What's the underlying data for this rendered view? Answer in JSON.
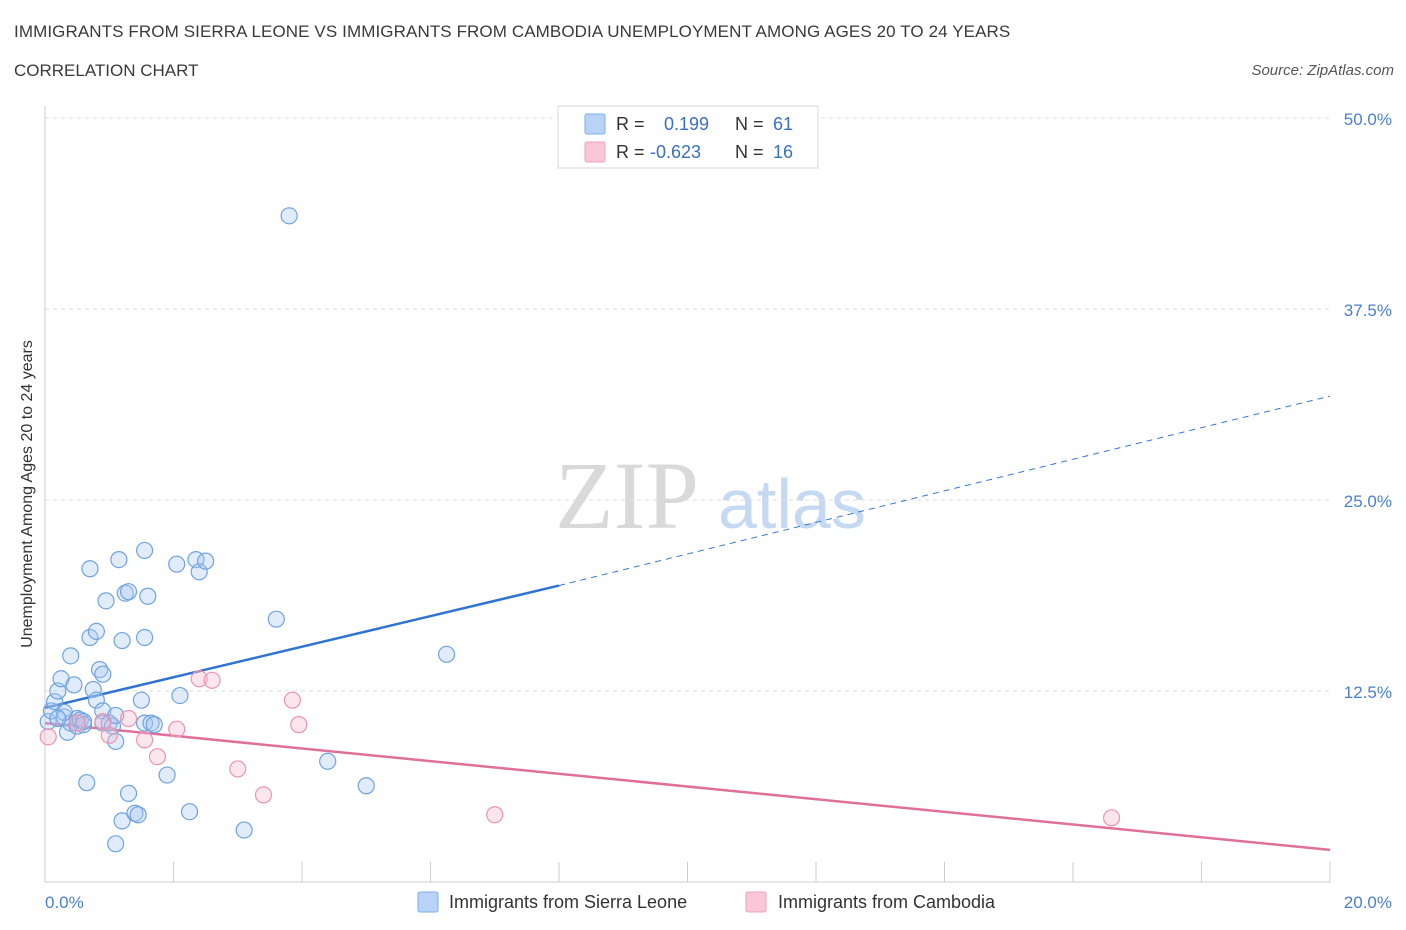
{
  "header": {
    "title": "IMMIGRANTS FROM SIERRA LEONE VS IMMIGRANTS FROM CAMBODIA UNEMPLOYMENT AMONG AGES 20 TO 24 YEARS",
    "subtitle": "CORRELATION CHART",
    "source": "Source: ZipAtlas.com"
  },
  "watermark": {
    "zip": "ZIP",
    "atlas": "atlas"
  },
  "legend": {
    "rows": [
      {
        "r_label": "R =",
        "r_value": "0.199",
        "n_label": "N =",
        "n_value": "61",
        "color": "#a8c8f0"
      },
      {
        "r_label": "R =",
        "r_value": "-0.623",
        "n_label": "N =",
        "n_value": "16",
        "color": "#f6b8cc"
      }
    ]
  },
  "chart_data": {
    "type": "scatter",
    "title": "IMMIGRANTS FROM SIERRA LEONE VS IMMIGRANTS FROM CAMBODIA UNEMPLOYMENT AMONG AGES 20 TO 24 YEARS",
    "subtitle": "CORRELATION CHART",
    "xlabel": "",
    "ylabel": "Unemployment Among Ages 20 to 24 years",
    "xlim": [
      0,
      20
    ],
    "ylim": [
      0,
      50
    ],
    "x_tick_labels": [
      "0.0%",
      "20.0%"
    ],
    "y_ticks": [
      12.5,
      25.0,
      37.5,
      50.0
    ],
    "y_tick_labels": [
      "12.5%",
      "25.0%",
      "37.5%",
      "50.0%"
    ],
    "grid": true,
    "legend_position": "top-center",
    "series": [
      {
        "name": "Immigrants from Sierra Leone",
        "color": "#7aaee8",
        "points": [
          [
            0.05,
            10.5
          ],
          [
            0.1,
            11.2
          ],
          [
            0.15,
            11.8
          ],
          [
            0.2,
            12.5
          ],
          [
            0.25,
            13.3
          ],
          [
            0.3,
            10.8
          ],
          [
            0.35,
            9.8
          ],
          [
            0.4,
            10.4
          ],
          [
            0.45,
            12.9
          ],
          [
            0.4,
            14.8
          ],
          [
            0.5,
            10.2
          ],
          [
            0.5,
            10.7
          ],
          [
            0.55,
            10.6
          ],
          [
            0.6,
            10.3
          ],
          [
            0.65,
            6.5
          ],
          [
            0.7,
            16.0
          ],
          [
            0.75,
            12.6
          ],
          [
            0.7,
            20.5
          ],
          [
            0.8,
            11.9
          ],
          [
            0.8,
            16.4
          ],
          [
            0.85,
            13.9
          ],
          [
            0.9,
            13.6
          ],
          [
            0.9,
            11.2
          ],
          [
            0.9,
            10.4
          ],
          [
            0.95,
            18.4
          ],
          [
            1.0,
            10.4
          ],
          [
            1.05,
            10.2
          ],
          [
            1.1,
            10.9
          ],
          [
            1.1,
            9.2
          ],
          [
            1.1,
            2.5
          ],
          [
            1.15,
            21.1
          ],
          [
            1.2,
            4.0
          ],
          [
            1.2,
            15.8
          ],
          [
            1.25,
            18.9
          ],
          [
            1.3,
            19.0
          ],
          [
            1.3,
            5.8
          ],
          [
            1.4,
            4.5
          ],
          [
            1.45,
            4.4
          ],
          [
            1.5,
            11.9
          ],
          [
            1.55,
            21.7
          ],
          [
            1.55,
            16.0
          ],
          [
            1.55,
            10.4
          ],
          [
            1.6,
            18.7
          ],
          [
            1.65,
            10.4
          ],
          [
            1.7,
            10.3
          ],
          [
            1.9,
            7.0
          ],
          [
            2.05,
            20.8
          ],
          [
            2.1,
            12.2
          ],
          [
            2.25,
            4.6
          ],
          [
            2.35,
            21.1
          ],
          [
            2.4,
            20.3
          ],
          [
            2.5,
            21.0
          ],
          [
            3.1,
            3.4
          ],
          [
            3.6,
            17.2
          ],
          [
            3.8,
            43.6
          ],
          [
            4.4,
            7.9
          ],
          [
            5.0,
            6.3
          ],
          [
            6.25,
            14.9
          ],
          [
            0.3,
            11.1
          ],
          [
            0.2,
            10.7
          ],
          [
            0.6,
            10.5
          ]
        ],
        "trend": {
          "x": [
            0,
            8.0
          ],
          "y": [
            11.4,
            19.4
          ],
          "dashed_extension": {
            "x": [
              8.0,
              20.0
            ],
            "y": [
              19.4,
              31.8
            ]
          }
        }
      },
      {
        "name": "Immigrants from Cambodia",
        "color": "#f0a0bc",
        "points": [
          [
            0.05,
            9.5
          ],
          [
            0.5,
            10.4
          ],
          [
            0.9,
            10.5
          ],
          [
            1.0,
            9.6
          ],
          [
            1.3,
            10.7
          ],
          [
            1.55,
            9.3
          ],
          [
            1.75,
            8.2
          ],
          [
            2.05,
            10.0
          ],
          [
            2.4,
            13.3
          ],
          [
            2.6,
            13.2
          ],
          [
            3.0,
            7.4
          ],
          [
            3.4,
            5.7
          ],
          [
            3.85,
            11.9
          ],
          [
            3.95,
            10.3
          ],
          [
            7.0,
            4.4
          ],
          [
            16.6,
            4.2
          ]
        ],
        "trend": {
          "x": [
            0,
            20.0
          ],
          "y": [
            10.4,
            2.1
          ]
        }
      }
    ]
  }
}
